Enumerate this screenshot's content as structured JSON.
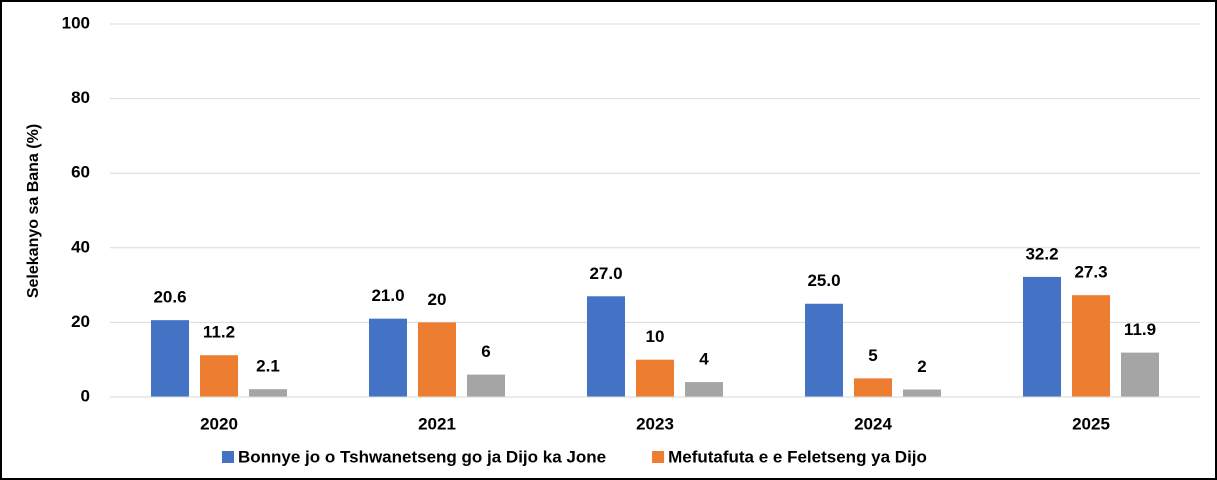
{
  "chart_data": {
    "type": "bar",
    "y_label": "Selekanyo sa Bana (%)",
    "categories": [
      "2020",
      "2021",
      "2023",
      "2024",
      "2025"
    ],
    "series": [
      {
        "name": "Bonnye jo o Tshwanetseng go ja Dijo ka Jone",
        "color": "#4472c4",
        "values": [
          20.6,
          21,
          27,
          25,
          32.2
        ],
        "value_labels": [
          "20.6",
          "21.0",
          "27.0",
          "25.0",
          "32.2"
        ]
      },
      {
        "name": "Mefutafuta e e Feletseng ya Dijo",
        "color": "#ed7d31",
        "values": [
          11.2,
          20,
          10,
          5,
          27.3
        ],
        "value_labels": [
          "11.2",
          "20",
          "10",
          "5",
          "27.3"
        ]
      },
      {
        "color": "#a5a5a5",
        "values": [
          2.1,
          6,
          4,
          2,
          11.9
        ],
        "value_labels": [
          "2.1",
          "6",
          "4",
          "2",
          "11.9"
        ]
      }
    ],
    "ylim": [
      0,
      100
    ],
    "yticks": [
      0,
      20,
      40,
      60,
      80,
      100
    ],
    "grid": true,
    "legend": "bottom"
  }
}
